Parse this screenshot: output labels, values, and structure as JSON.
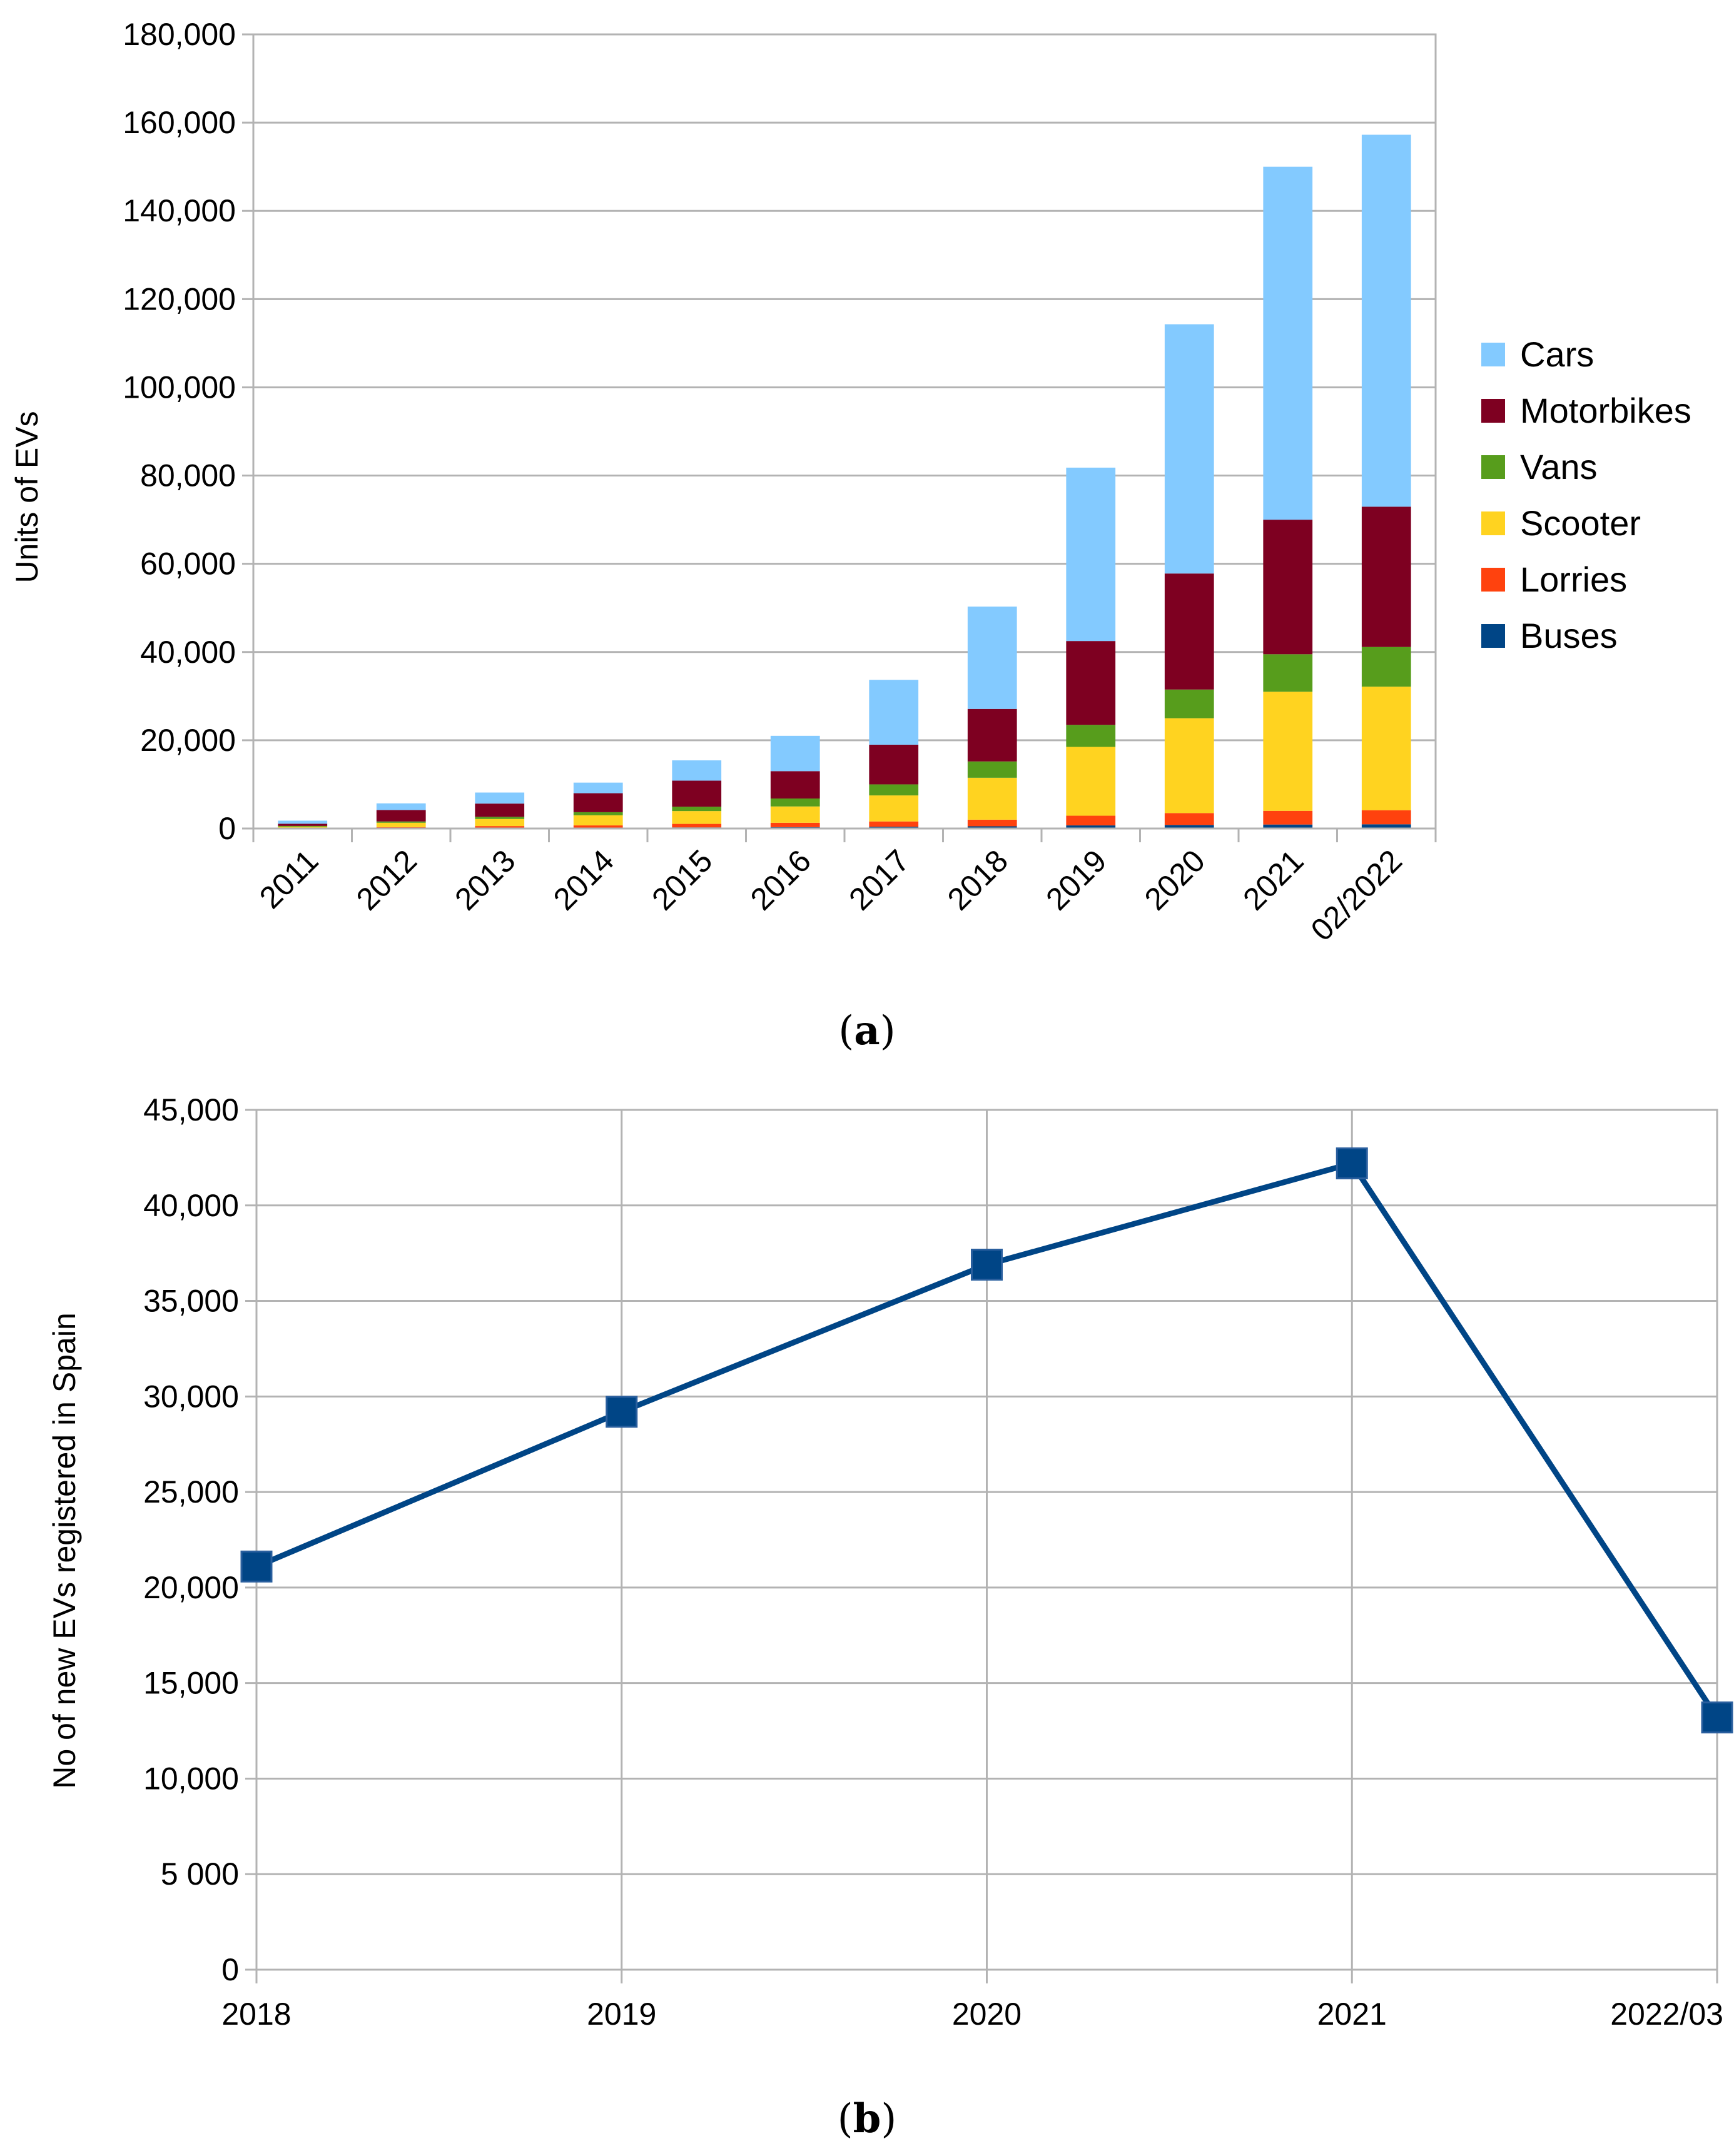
{
  "chart_data": [
    {
      "type": "bar",
      "stacked": true,
      "caption_letter": "a",
      "ylabel": "Units of EVs",
      "ylim": [
        0,
        180000
      ],
      "y_ticks": [
        0,
        20000,
        40000,
        60000,
        80000,
        100000,
        120000,
        140000,
        160000,
        180000
      ],
      "y_tick_labels": [
        "0",
        "20,000",
        "40,000",
        "60,000",
        "80,000",
        "100,000",
        "120,000",
        "140,000",
        "160,000",
        "180,000"
      ],
      "grid": true,
      "legend_position": "right",
      "categories": [
        "2011",
        "2012",
        "2013",
        "2014",
        "2015",
        "2016",
        "2017",
        "2018",
        "2019",
        "2020",
        "2021",
        "02/2022"
      ],
      "series": [
        {
          "name": "Buses",
          "color": "#004586",
          "values": [
            30,
            100,
            150,
            200,
            250,
            300,
            400,
            500,
            700,
            800,
            900,
            950
          ]
        },
        {
          "name": "Lorries",
          "color": "#ff420e",
          "values": [
            100,
            200,
            400,
            500,
            800,
            1000,
            1200,
            1500,
            2200,
            2700,
            3100,
            3200
          ]
        },
        {
          "name": "Scooter",
          "color": "#ffd320",
          "values": [
            300,
            1000,
            1600,
            2300,
            2900,
            3700,
            5900,
            9500,
            15600,
            21500,
            27000,
            28000
          ]
        },
        {
          "name": "Vans",
          "color": "#579d1c",
          "values": [
            150,
            300,
            500,
            700,
            1000,
            1800,
            2500,
            3700,
            5000,
            6500,
            8500,
            9000
          ]
        },
        {
          "name": "Motorbikes",
          "color": "#7e0021",
          "values": [
            500,
            2600,
            3000,
            4300,
            5900,
            6200,
            9000,
            11900,
            19000,
            26300,
            30500,
            31800
          ]
        },
        {
          "name": "Cars",
          "color": "#83caff",
          "values": [
            700,
            1500,
            2500,
            2400,
            4600,
            8000,
            14700,
            23200,
            39300,
            56500,
            80000,
            84300
          ]
        }
      ],
      "legend_order": [
        "Cars",
        "Motorbikes",
        "Vans",
        "Scooter",
        "Lorries",
        "Buses"
      ]
    },
    {
      "type": "line",
      "caption_letter": "b",
      "ylabel": "No of new EVs registered in Spain",
      "ylim": [
        0,
        45000
      ],
      "y_ticks": [
        0,
        5000,
        10000,
        15000,
        20000,
        25000,
        30000,
        35000,
        40000,
        45000
      ],
      "y_tick_labels": [
        "0",
        "5 000",
        "10,000",
        "15,000",
        "20,000",
        "25,000",
        "30,000",
        "35,000",
        "40,000",
        "45,000"
      ],
      "grid": true,
      "x": [
        "2018",
        "2019",
        "2020",
        "2021",
        "2022/03"
      ],
      "series": [
        {
          "name": "New EVs",
          "color": "#004586",
          "values": [
            21100,
            29200,
            36900,
            42200,
            13200
          ]
        }
      ]
    }
  ]
}
